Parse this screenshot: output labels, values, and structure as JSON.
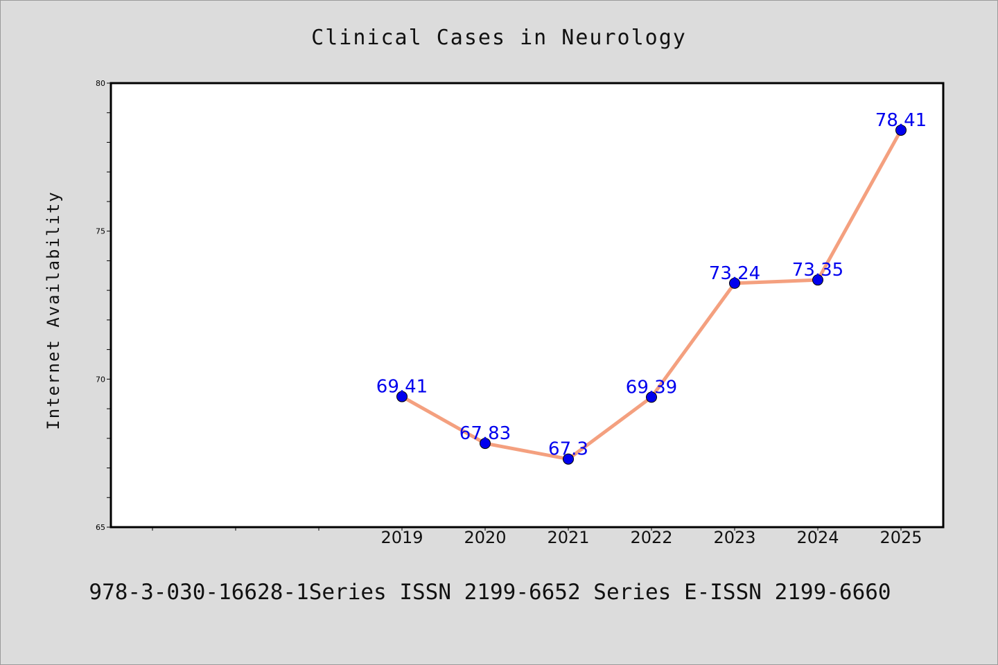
{
  "chart_data": {
    "type": "line",
    "title": "Clinical Cases in Neurology",
    "ylabel": "Internet Availability",
    "xlabel": "",
    "x": [
      "2019",
      "2020",
      "2021",
      "2022",
      "2023",
      "2024",
      "2025"
    ],
    "series": [
      {
        "values": [
          69.41,
          67.83,
          67.3,
          69.39,
          73.24,
          73.35,
          78.41
        ]
      }
    ],
    "data_labels": [
      "69.41",
      "67.83",
      "67.3",
      "69.39",
      "73.24",
      "73.35",
      "78.41"
    ],
    "ylim": [
      65,
      80
    ],
    "yticks": [
      "65",
      "70",
      "75",
      "80"
    ],
    "grid": false,
    "colors": {
      "line": "#f4a07f",
      "marker": "#0000ee",
      "label": "#0000ee",
      "background": "#dcdcdc",
      "plot_bg": "#ffffff"
    }
  },
  "footer": "978-3-030-16628-1Series ISSN 2199-6652 Series E-ISSN 2199-6660"
}
